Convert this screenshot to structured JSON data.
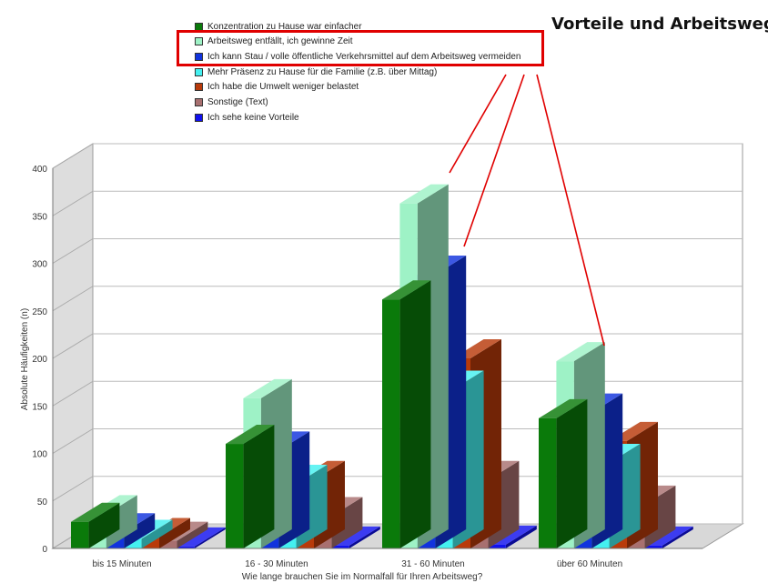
{
  "title": "Vorteile und Arbeitsweg",
  "colors": {
    "highlight": "#e00000",
    "series": [
      "#0a7a0a",
      "#9ef2c6",
      "#1133dd",
      "#44f0f0",
      "#b83a0a",
      "#a87070",
      "#1111ee"
    ]
  },
  "chart_data": {
    "type": "bar",
    "title": "",
    "xlabel": "Wie lange brauchen Sie im Normalfall für Ihren Arbeitsweg?",
    "ylabel": "Absolute Häufigkeiten (n)",
    "ylim": [
      0,
      400
    ],
    "yticks": [
      "0",
      "50",
      "100",
      "150",
      "200",
      "250",
      "300",
      "350",
      "400"
    ],
    "categories": [
      "bis 15 Minuten",
      "16 - 30 Minuten",
      "31 - 60 Minuten",
      "über 60 Minuten"
    ],
    "series": [
      {
        "name": "Konzentration zu Hause war einfacher",
        "values": [
          28,
          110,
          262,
          137
        ]
      },
      {
        "name": "Arbeitsweg entfällt, ich gewinne Zeit",
        "values": [
          36,
          158,
          363,
          197
        ]
      },
      {
        "name": "Ich kann Stau / volle öffentliche Verkehrsmittel auf dem Arbeitsweg vermeiden",
        "values": [
          17,
          103,
          288,
          143
        ]
      },
      {
        "name": "Mehr Präsenz zu Hause für die Familie (z.B. über Mittag)",
        "values": [
          10,
          68,
          167,
          90
        ]
      },
      {
        "name": "Ich habe die Umwelt weniger belastet",
        "values": [
          12,
          72,
          200,
          113
        ]
      },
      {
        "name": "Sonstige (Text)",
        "values": [
          8,
          34,
          72,
          46
        ]
      },
      {
        "name": "Ich sehe keine Vorteile",
        "values": [
          2,
          3,
          4,
          3
        ]
      }
    ],
    "legend": "top",
    "grid": true
  }
}
